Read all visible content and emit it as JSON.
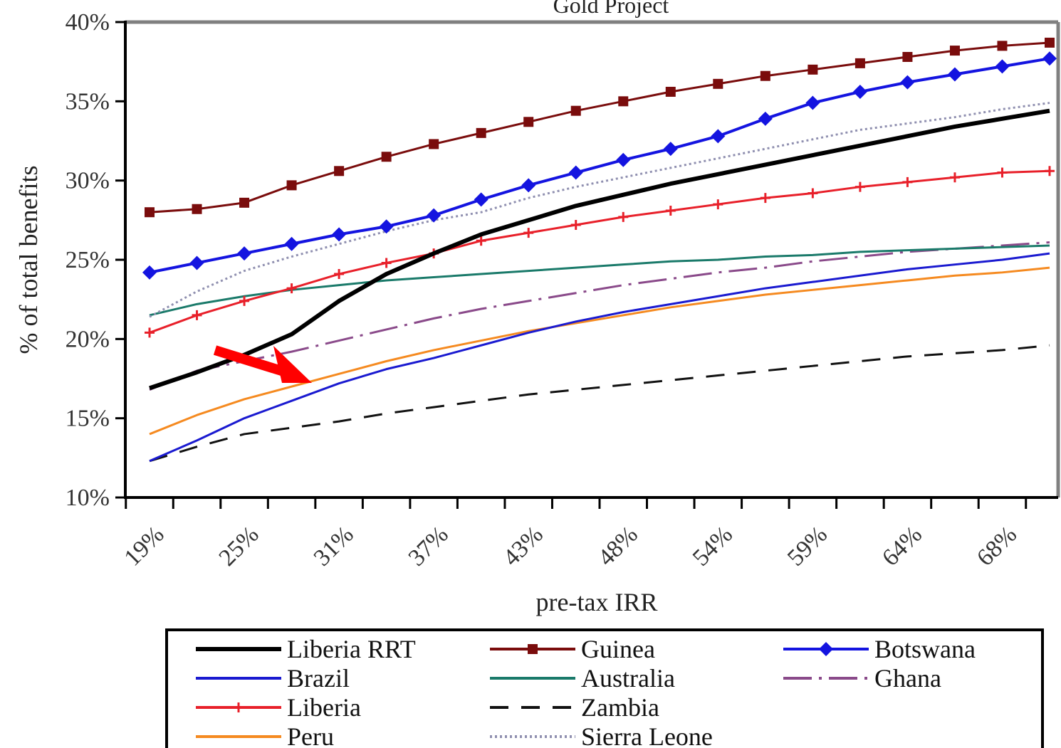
{
  "chart_data": {
    "type": "line",
    "title": "Gold Project",
    "xlabel": "pre-tax IRR",
    "ylabel": "% of total benefits",
    "ylim": [
      0.1,
      0.4
    ],
    "y_ticks": [
      "10%",
      "15%",
      "20%",
      "25%",
      "30%",
      "35%",
      "40%"
    ],
    "x_tick_labels": [
      "19%",
      "25%",
      "31%",
      "37%",
      "43%",
      "48%",
      "54%",
      "59%",
      "64%",
      "68%"
    ],
    "x": [
      "19%",
      "",
      "25%",
      "",
      "31%",
      "",
      "37%",
      "",
      "43%",
      "",
      "48%",
      "",
      "54%",
      "",
      "59%",
      "",
      "64%",
      "",
      "68%",
      ""
    ],
    "grid": false,
    "legend_position": "bottom",
    "annotations": [
      {
        "type": "arrow",
        "color": "#ff0000",
        "points_to": "Brazil / Peru near 31%"
      }
    ],
    "series": [
      {
        "name": "Liberia RRT",
        "color": "#000000",
        "style": "solid",
        "width": 6,
        "marker": "none",
        "values": [
          0.169,
          0.179,
          0.19,
          0.203,
          0.224,
          0.241,
          0.254,
          0.266,
          0.275,
          0.284,
          0.291,
          0.298,
          0.304,
          0.31,
          0.316,
          0.322,
          0.328,
          0.334,
          0.339,
          0.344
        ]
      },
      {
        "name": "Brazil",
        "color": "#1a1ad0",
        "style": "solid",
        "width": 3,
        "marker": "none",
        "values": [
          0.123,
          0.136,
          0.15,
          0.161,
          0.172,
          0.181,
          0.188,
          0.196,
          0.204,
          0.211,
          0.217,
          0.222,
          0.227,
          0.232,
          0.236,
          0.24,
          0.244,
          0.247,
          0.25,
          0.254
        ]
      },
      {
        "name": "Liberia",
        "color": "#e8202a",
        "style": "solid",
        "width": 3,
        "marker": "plus",
        "values": [
          0.204,
          0.215,
          0.224,
          0.232,
          0.241,
          0.248,
          0.254,
          0.262,
          0.267,
          0.272,
          0.277,
          0.281,
          0.285,
          0.289,
          0.292,
          0.296,
          0.299,
          0.302,
          0.305,
          0.306
        ]
      },
      {
        "name": "Peru",
        "color": "#f58a20",
        "style": "solid",
        "width": 3,
        "marker": "none",
        "values": [
          0.14,
          0.152,
          0.162,
          0.17,
          0.178,
          0.186,
          0.193,
          0.199,
          0.205,
          0.21,
          0.215,
          0.22,
          0.224,
          0.228,
          0.231,
          0.234,
          0.237,
          0.24,
          0.242,
          0.245
        ]
      },
      {
        "name": "Guinea",
        "color": "#7a0c0c",
        "style": "solid",
        "width": 3,
        "marker": "square",
        "values": [
          0.28,
          0.282,
          0.286,
          0.297,
          0.306,
          0.315,
          0.323,
          0.33,
          0.337,
          0.344,
          0.35,
          0.356,
          0.361,
          0.366,
          0.37,
          0.374,
          0.378,
          0.382,
          0.385,
          0.387
        ]
      },
      {
        "name": "Australia",
        "color": "#1a7a6a",
        "style": "solid",
        "width": 3,
        "marker": "none",
        "values": [
          0.215,
          0.222,
          0.227,
          0.231,
          0.234,
          0.237,
          0.239,
          0.241,
          0.243,
          0.245,
          0.247,
          0.249,
          0.25,
          0.252,
          0.253,
          0.255,
          0.256,
          0.257,
          0.258,
          0.259
        ]
      },
      {
        "name": "Zambia",
        "color": "#111111",
        "style": "dashed",
        "width": 3,
        "marker": "none",
        "values": [
          0.123,
          0.132,
          0.14,
          0.144,
          0.148,
          0.153,
          0.157,
          0.161,
          0.165,
          0.168,
          0.171,
          0.174,
          0.177,
          0.18,
          0.183,
          0.186,
          0.189,
          0.191,
          0.193,
          0.196
        ]
      },
      {
        "name": "Sierra Leone",
        "color": "#9090b0",
        "style": "dotted",
        "width": 3,
        "marker": "none",
        "values": [
          0.214,
          0.23,
          0.243,
          0.252,
          0.26,
          0.268,
          0.275,
          0.28,
          0.289,
          0.296,
          0.302,
          0.308,
          0.314,
          0.32,
          0.326,
          0.332,
          0.336,
          0.34,
          0.345,
          0.349
        ]
      },
      {
        "name": "Botswana",
        "color": "#1414e0",
        "style": "solid",
        "width": 4,
        "marker": "diamond",
        "values": [
          0.242,
          0.248,
          0.254,
          0.26,
          0.266,
          0.271,
          0.278,
          0.288,
          0.297,
          0.305,
          0.313,
          0.32,
          0.328,
          0.339,
          0.349,
          0.356,
          0.362,
          0.367,
          0.372,
          0.377
        ]
      },
      {
        "name": "Ghana",
        "color": "#8a4a8a",
        "style": "dashdot",
        "width": 3,
        "marker": "none",
        "values": [
          0.168,
          0.18,
          0.186,
          0.192,
          0.199,
          0.206,
          0.213,
          0.219,
          0.224,
          0.229,
          0.234,
          0.238,
          0.242,
          0.245,
          0.249,
          0.252,
          0.255,
          0.257,
          0.259,
          0.261
        ]
      }
    ]
  }
}
